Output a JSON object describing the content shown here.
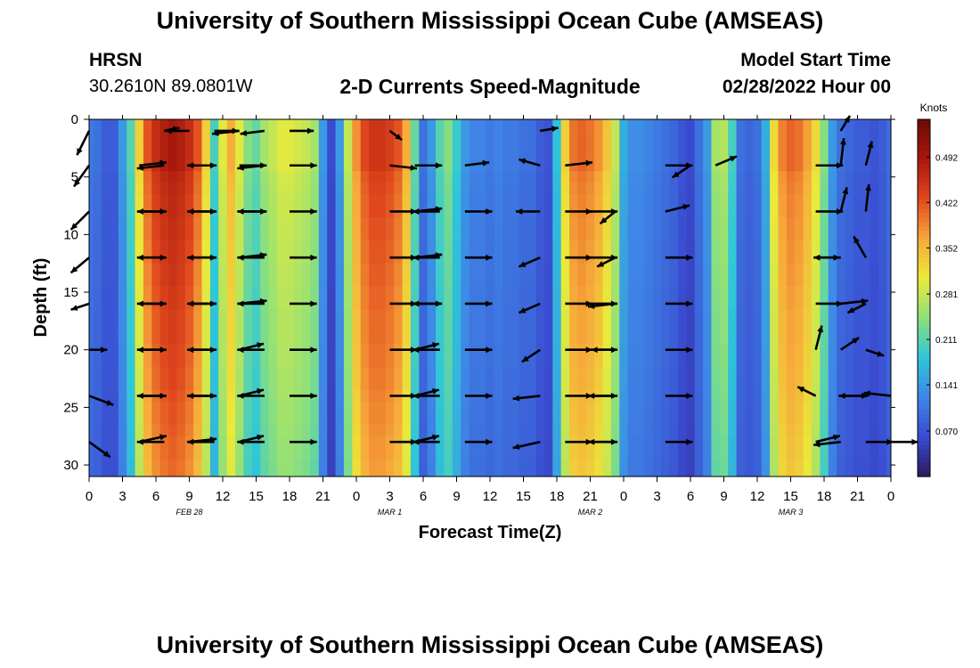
{
  "header": {
    "title": "University of Southern Mississippi Ocean Cube (AMSEAS)",
    "station": "HRSN",
    "coords": "30.2610N  89.0801W",
    "chart_heading": "2-D Currents Speed-Magnitude",
    "model_start_label": "Model Start Time",
    "model_start_value": "02/28/2022 Hour 00"
  },
  "footer": {
    "title": "University of Southern Mississippi Ocean Cube (AMSEAS)"
  },
  "colors": {
    "colormap": [
      "#2b1a5c",
      "#3a4bd0",
      "#3f86e6",
      "#2ec7d8",
      "#8ee07a",
      "#eaea3a",
      "#f7a73a",
      "#e0471e",
      "#a8180c",
      "#6e0a06"
    ],
    "arrow": "#000000"
  },
  "chart_data": {
    "type": "heatmap",
    "title": "2-D Currents Speed-Magnitude",
    "xlabel": "Forecast Time(Z)",
    "ylabel": "Depth (ft)",
    "x_tick_labels": [
      "0",
      "3",
      "6",
      "9",
      "12",
      "15",
      "18",
      "21",
      "0",
      "3",
      "6",
      "9",
      "12",
      "15",
      "18",
      "21",
      "0",
      "3",
      "6",
      "9",
      "12",
      "15",
      "18",
      "21",
      "0"
    ],
    "date_labels": [
      {
        "label": "FEB 28",
        "hour": 12
      },
      {
        "label": "MAR 1",
        "hour": 36
      },
      {
        "label": "MAR 2",
        "hour": 60
      },
      {
        "label": "MAR 3",
        "hour": 84
      }
    ],
    "xlim": [
      0,
      96
    ],
    "y_ticks": [
      0,
      5,
      10,
      15,
      20,
      25,
      30
    ],
    "ylim": [
      0,
      31
    ],
    "colorbar": {
      "label": "Knots",
      "range": [
        0,
        0.55
      ],
      "tick_values": [
        0.492,
        0.422,
        0.352,
        0.281,
        0.211,
        0.141,
        0.07
      ],
      "tick_labels": [
        "0.492",
        "0.422",
        "0.352",
        "0.281",
        "0.211",
        "0.141",
        "0.070"
      ]
    },
    "speed_profile_hours": [
      0,
      1,
      2,
      3,
      4,
      5,
      6,
      7,
      8,
      9,
      10,
      11,
      12,
      13,
      14,
      15,
      16,
      17,
      18,
      19,
      20,
      21,
      22,
      23,
      24,
      25,
      26,
      27,
      28,
      29,
      30,
      31,
      32,
      33,
      34,
      35,
      36,
      37,
      38,
      39,
      40,
      41,
      42,
      43,
      44,
      45,
      46,
      47,
      48,
      49,
      50,
      51,
      52,
      53,
      54,
      55,
      56,
      57,
      58,
      59,
      60,
      61,
      62,
      63,
      64,
      65,
      66,
      67,
      68,
      69,
      70,
      71,
      72,
      73,
      74,
      75,
      76,
      77,
      78,
      79,
      80,
      81,
      82,
      83,
      84,
      85,
      86,
      87,
      88,
      89,
      90,
      91,
      92,
      93,
      94,
      95,
      96
    ],
    "speed_profile_knots": [
      0.11,
      0.1,
      0.08,
      0.08,
      0.14,
      0.21,
      0.33,
      0.42,
      0.46,
      0.48,
      0.49,
      0.48,
      0.46,
      0.42,
      0.33,
      0.2,
      0.3,
      0.36,
      0.3,
      0.24,
      0.22,
      0.26,
      0.28,
      0.3,
      0.3,
      0.29,
      0.28,
      0.26,
      0.14,
      0.06,
      0.14,
      0.28,
      0.38,
      0.43,
      0.45,
      0.45,
      0.44,
      0.42,
      0.36,
      0.22,
      0.1,
      0.14,
      0.21,
      0.24,
      0.19,
      0.14,
      0.12,
      0.12,
      0.11,
      0.12,
      0.11,
      0.11,
      0.1,
      0.1,
      0.08,
      0.07,
      0.18,
      0.33,
      0.4,
      0.41,
      0.4,
      0.38,
      0.34,
      0.28,
      0.16,
      0.13,
      0.13,
      0.12,
      0.11,
      0.1,
      0.09,
      0.07,
      0.06,
      0.1,
      0.14,
      0.26,
      0.27,
      0.2,
      0.1,
      0.09,
      0.1,
      0.16,
      0.32,
      0.39,
      0.41,
      0.4,
      0.37,
      0.32,
      0.24,
      0.14,
      0.1,
      0.09,
      0.08,
      0.08,
      0.07,
      0.08,
      0.1
    ],
    "speed_depth_factor": [
      1.0,
      1.0,
      1.0,
      1.0,
      1.0,
      0.97,
      0.96,
      0.95,
      0.95,
      0.94,
      0.94,
      0.93,
      0.93,
      0.92,
      0.92,
      0.91,
      0.91,
      0.9,
      0.9,
      0.9,
      0.89,
      0.89,
      0.88,
      0.88,
      0.87,
      0.86,
      0.86,
      0.85,
      0.84,
      0.84,
      0.83,
      0.83
    ],
    "vector_hours": [
      0,
      3,
      6,
      9,
      12,
      15,
      18,
      21,
      24,
      27,
      30,
      33,
      36,
      39,
      42,
      45,
      48,
      51,
      54,
      57,
      60,
      63,
      66,
      69,
      72,
      75,
      78,
      81,
      84,
      87,
      90,
      93,
      96
    ],
    "vector_depths_ft": [
      1,
      4,
      8,
      12,
      16,
      20,
      24,
      28
    ],
    "vector_field": [
      [
        [
          -0.4,
          -0.8
        ],
        [
          0,
          0
        ],
        [
          0,
          0
        ],
        [
          0.5,
          0.1
        ],
        [
          -0.8,
          0
        ],
        [
          0.8,
          0
        ],
        [
          -0.9,
          -0.1
        ],
        [
          -0.8,
          -0.1
        ],
        [
          0.8,
          0
        ],
        [
          0,
          0
        ],
        [
          0,
          0
        ],
        [
          0,
          0
        ],
        [
          0.4,
          -0.3
        ],
        [
          0,
          0
        ],
        [
          0,
          0
        ],
        [
          0,
          0
        ],
        [
          0,
          0
        ],
        [
          0,
          0
        ],
        [
          0.6,
          0.1
        ],
        [
          0,
          0
        ],
        [
          0,
          0
        ],
        [
          0,
          0
        ],
        [
          0,
          0
        ],
        [
          0,
          0
        ],
        [
          0,
          0
        ],
        [
          0,
          0
        ],
        [
          0,
          0
        ],
        [
          0,
          0
        ],
        [
          0,
          0
        ],
        [
          0,
          0
        ],
        [
          0.3,
          0.5
        ],
        [
          0,
          0
        ],
        [
          0,
          0
        ]
      ],
      [
        [
          -0.5,
          -0.7
        ],
        [
          0,
          0
        ],
        [
          0.9,
          0.1
        ],
        [
          -0.9,
          -0.1
        ],
        [
          0.9,
          0
        ],
        [
          -0.9,
          0
        ],
        [
          0.9,
          0
        ],
        [
          -0.9,
          -0.1
        ],
        [
          0.9,
          0
        ],
        [
          0,
          0
        ],
        [
          0,
          0
        ],
        [
          0,
          0
        ],
        [
          0.9,
          -0.1
        ],
        [
          0.9,
          0
        ],
        [
          0,
          0
        ],
        [
          0.8,
          0.1
        ],
        [
          0,
          0
        ],
        [
          0,
          0
        ],
        [
          -0.7,
          0.2
        ],
        [
          0.9,
          0.1
        ],
        [
          0,
          0
        ],
        [
          0,
          0
        ],
        [
          0,
          0
        ],
        [
          0.9,
          0
        ],
        [
          -0.6,
          -0.4
        ],
        [
          0.7,
          0.3
        ],
        [
          0,
          0
        ],
        [
          0,
          0
        ],
        [
          0,
          0
        ],
        [
          0.9,
          0
        ],
        [
          0.1,
          0.9
        ],
        [
          0.2,
          0.8
        ],
        [
          0,
          0
        ]
      ],
      [
        [
          -0.6,
          -0.6
        ],
        [
          0,
          0
        ],
        [
          0.9,
          0
        ],
        [
          -0.9,
          0
        ],
        [
          0.9,
          0
        ],
        [
          -0.9,
          0
        ],
        [
          0.9,
          0
        ],
        [
          -0.9,
          0
        ],
        [
          0.9,
          0
        ],
        [
          0,
          0
        ],
        [
          0,
          0
        ],
        [
          0,
          0
        ],
        [
          0.9,
          0
        ],
        [
          0.9,
          0.1
        ],
        [
          -0.9,
          0
        ],
        [
          0.9,
          0
        ],
        [
          0,
          0
        ],
        [
          0,
          0
        ],
        [
          -0.8,
          0
        ],
        [
          0.9,
          0
        ],
        [
          0.9,
          0
        ],
        [
          -0.5,
          -0.4
        ],
        [
          0,
          0
        ],
        [
          0.8,
          0.2
        ],
        [
          0,
          0
        ],
        [
          0,
          0
        ],
        [
          0,
          0
        ],
        [
          0,
          0
        ],
        [
          0,
          0
        ],
        [
          0.9,
          0
        ],
        [
          0.2,
          0.8
        ],
        [
          0.1,
          0.9
        ],
        [
          0,
          0
        ]
      ],
      [
        [
          -0.6,
          -0.5
        ],
        [
          0,
          0
        ],
        [
          0.9,
          0
        ],
        [
          -0.9,
          0
        ],
        [
          0.9,
          0
        ],
        [
          -0.9,
          0
        ],
        [
          0.9,
          0.1
        ],
        [
          -0.9,
          0
        ],
        [
          0.9,
          0
        ],
        [
          0,
          0
        ],
        [
          0,
          0
        ],
        [
          0,
          0
        ],
        [
          0.9,
          0
        ],
        [
          0.9,
          0.1
        ],
        [
          -0.9,
          0
        ],
        [
          0.9,
          0
        ],
        [
          0,
          0
        ],
        [
          0,
          0
        ],
        [
          -0.7,
          -0.3
        ],
        [
          0.9,
          0
        ],
        [
          0.9,
          0
        ],
        [
          -0.6,
          -0.3
        ],
        [
          0,
          0
        ],
        [
          0.9,
          0
        ],
        [
          0,
          0
        ],
        [
          0,
          0
        ],
        [
          0,
          0
        ],
        [
          0,
          0
        ],
        [
          0,
          0
        ],
        [
          0.8,
          0
        ],
        [
          -0.9,
          0
        ],
        [
          -0.4,
          0.7
        ],
        [
          0,
          0
        ]
      ],
      [
        [
          -0.6,
          -0.2
        ],
        [
          0,
          0
        ],
        [
          0.9,
          0
        ],
        [
          -0.9,
          0
        ],
        [
          0.9,
          0
        ],
        [
          -0.9,
          0
        ],
        [
          0.9,
          0.1
        ],
        [
          -0.9,
          0
        ],
        [
          0.9,
          0
        ],
        [
          0,
          0
        ],
        [
          0,
          0
        ],
        [
          0,
          0
        ],
        [
          0.9,
          0
        ],
        [
          0.9,
          0
        ],
        [
          -0.9,
          0
        ],
        [
          0.9,
          0
        ],
        [
          0,
          0
        ],
        [
          0,
          0
        ],
        [
          -0.7,
          -0.3
        ],
        [
          0.9,
          0
        ],
        [
          0.9,
          0
        ],
        [
          -0.9,
          -0.1
        ],
        [
          0,
          0
        ],
        [
          0.9,
          0
        ],
        [
          0,
          0
        ],
        [
          0,
          0
        ],
        [
          0,
          0
        ],
        [
          0,
          0
        ],
        [
          0,
          0
        ],
        [
          0.9,
          0
        ],
        [
          0.9,
          0.1
        ],
        [
          -0.6,
          -0.3
        ],
        [
          0,
          0
        ]
      ],
      [
        [
          0.6,
          0
        ],
        [
          0,
          0
        ],
        [
          0.9,
          0
        ],
        [
          -0.9,
          0
        ],
        [
          0.9,
          0
        ],
        [
          -0.9,
          0
        ],
        [
          0.8,
          0.2
        ],
        [
          -0.9,
          0
        ],
        [
          0.9,
          0
        ],
        [
          0,
          0
        ],
        [
          0,
          0
        ],
        [
          0,
          0
        ],
        [
          0.9,
          0
        ],
        [
          0.8,
          0.2
        ],
        [
          -0.9,
          0
        ],
        [
          0.9,
          0
        ],
        [
          0,
          0
        ],
        [
          0,
          0
        ],
        [
          -0.6,
          -0.4
        ],
        [
          0.9,
          0
        ],
        [
          0.9,
          0
        ],
        [
          -0.8,
          0
        ],
        [
          0,
          0
        ],
        [
          0.9,
          0
        ],
        [
          0,
          0
        ],
        [
          0,
          0
        ],
        [
          0,
          0
        ],
        [
          0,
          0
        ],
        [
          0,
          0
        ],
        [
          0.2,
          0.8
        ],
        [
          0.6,
          0.4
        ],
        [
          0.6,
          -0.2
        ],
        [
          0,
          0
        ]
      ],
      [
        [
          0.8,
          -0.3
        ],
        [
          0,
          0
        ],
        [
          0.9,
          0
        ],
        [
          -0.9,
          0
        ],
        [
          0.9,
          0
        ],
        [
          -0.9,
          0
        ],
        [
          0.8,
          0.2
        ],
        [
          -0.9,
          0
        ],
        [
          0.9,
          0
        ],
        [
          0,
          0
        ],
        [
          0,
          0
        ],
        [
          0,
          0
        ],
        [
          0.9,
          0
        ],
        [
          0.8,
          0.2
        ],
        [
          -0.9,
          0
        ],
        [
          0.9,
          0
        ],
        [
          0,
          0
        ],
        [
          0,
          0
        ],
        [
          -0.9,
          -0.1
        ],
        [
          0.9,
          0
        ],
        [
          0.9,
          0
        ],
        [
          -0.9,
          0
        ],
        [
          0,
          0
        ],
        [
          0.9,
          0
        ],
        [
          0,
          0
        ],
        [
          0,
          0
        ],
        [
          0,
          0
        ],
        [
          0,
          0
        ],
        [
          0,
          0
        ],
        [
          -0.6,
          0.3
        ],
        [
          0.9,
          0
        ],
        [
          -0.9,
          0
        ],
        [
          -0.9,
          0.1
        ]
      ],
      [
        [
          0.7,
          -0.5
        ],
        [
          0,
          0
        ],
        [
          0.9,
          0.2
        ],
        [
          -0.9,
          0
        ],
        [
          0.9,
          0.1
        ],
        [
          -0.9,
          0
        ],
        [
          0.8,
          0.2
        ],
        [
          -0.9,
          0
        ],
        [
          0.9,
          0
        ],
        [
          0,
          0
        ],
        [
          0,
          0
        ],
        [
          0,
          0
        ],
        [
          0.9,
          0
        ],
        [
          0.8,
          0.2
        ],
        [
          -0.9,
          0
        ],
        [
          0.9,
          0
        ],
        [
          0,
          0
        ],
        [
          0,
          0
        ],
        [
          -0.9,
          -0.2
        ],
        [
          0.9,
          0
        ],
        [
          0.9,
          0
        ],
        [
          -0.9,
          0
        ],
        [
          0,
          0
        ],
        [
          0.9,
          0
        ],
        [
          0,
          0
        ],
        [
          0,
          0
        ],
        [
          0,
          0
        ],
        [
          0,
          0
        ],
        [
          0,
          0
        ],
        [
          0.8,
          0.2
        ],
        [
          -0.9,
          -0.1
        ],
        [
          0.9,
          0
        ],
        [
          0.9,
          0
        ]
      ]
    ]
  }
}
